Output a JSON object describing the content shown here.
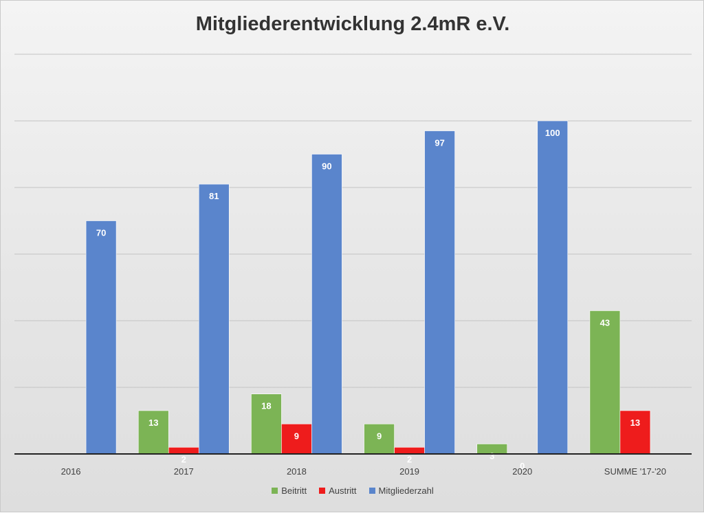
{
  "chart_data": {
    "type": "bar",
    "title": "Mitgliederentwicklung 2.4mR e.V.",
    "categories": [
      "2016",
      "2017",
      "2018",
      "2019",
      "2020",
      "SUMME '17-'20"
    ],
    "series": [
      {
        "name": "Beitritt",
        "color": "#7cb455",
        "values": [
          null,
          13,
          18,
          9,
          3,
          43
        ]
      },
      {
        "name": "Austritt",
        "color": "#ee1c1c",
        "values": [
          null,
          2,
          9,
          2,
          0,
          13
        ]
      },
      {
        "name": "Mitgliederzahl",
        "color": "#5a85cc",
        "values": [
          70,
          81,
          90,
          97,
          100,
          null
        ]
      }
    ],
    "ylim": [
      0,
      120
    ],
    "y_grid_step": 20,
    "grid": true,
    "legend_position": "bottom"
  }
}
